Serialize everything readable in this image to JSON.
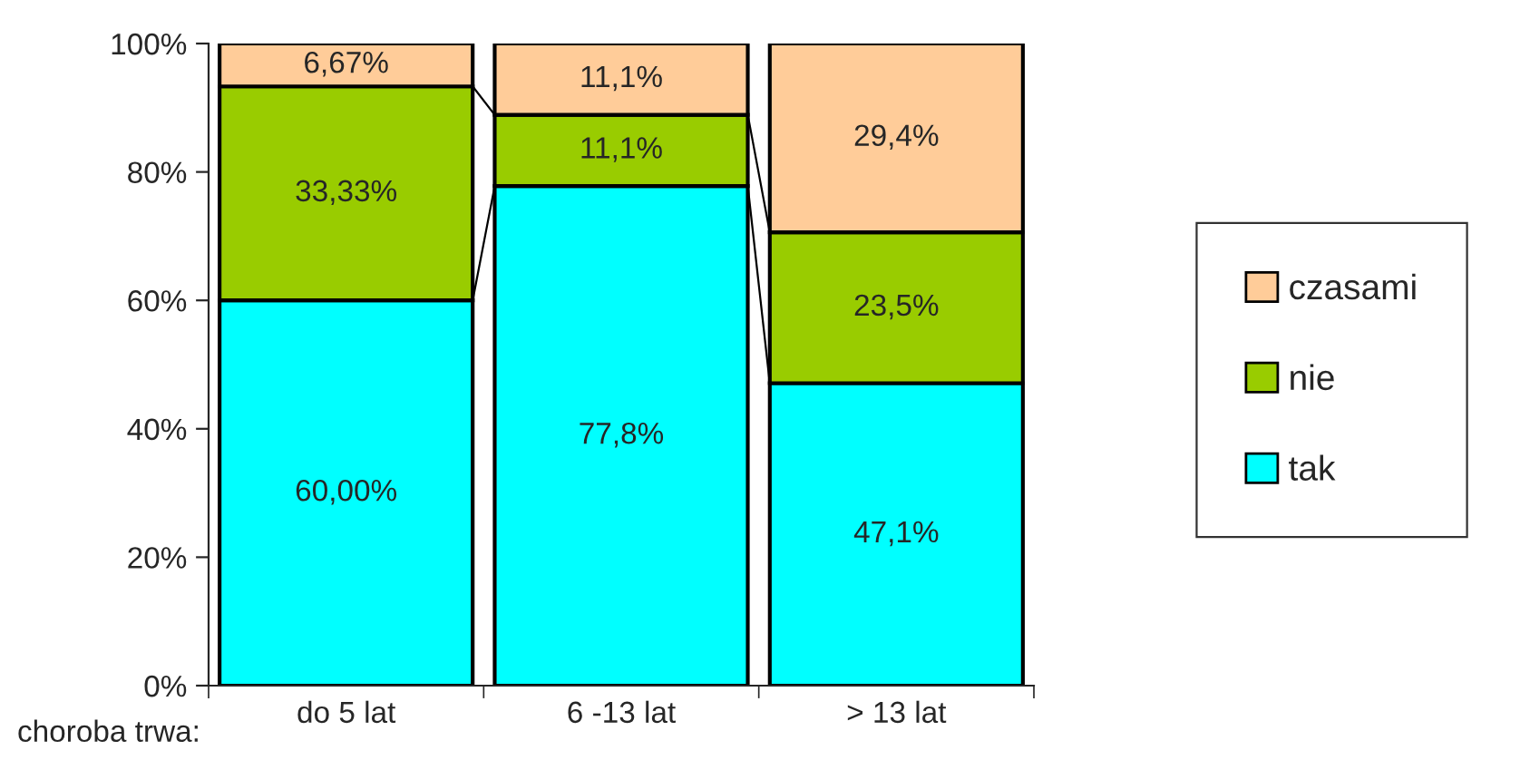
{
  "chart_data": {
    "type": "bar",
    "stacked": true,
    "xlabel": "choroba trwa:",
    "categories": [
      "do 5 lat",
      "6 -13 lat",
      "> 13 lat"
    ],
    "series": [
      {
        "name": "tak",
        "color": "#00ffff",
        "values": [
          60.0,
          77.8,
          47.1
        ],
        "value_labels": [
          "60,00%",
          "77,8%",
          "47,1%"
        ]
      },
      {
        "name": "nie",
        "color": "#99cc00",
        "values": [
          33.33,
          11.1,
          23.5
        ],
        "value_labels": [
          "33,33%",
          "11,1%",
          "23,5%"
        ]
      },
      {
        "name": "czasami",
        "color": "#ffcc99",
        "values": [
          6.67,
          11.1,
          29.4
        ],
        "value_labels": [
          "6,67%",
          "11,1%",
          "29,4%"
        ]
      }
    ],
    "ylim": [
      0,
      100
    ],
    "yticks": [
      {
        "value": 0,
        "label": "0%"
      },
      {
        "value": 20,
        "label": "20%"
      },
      {
        "value": 40,
        "label": "40%"
      },
      {
        "value": 60,
        "label": "60%"
      },
      {
        "value": 80,
        "label": "80%"
      },
      {
        "value": 100,
        "label": "100%"
      }
    ],
    "grid": false,
    "legend": "right"
  }
}
